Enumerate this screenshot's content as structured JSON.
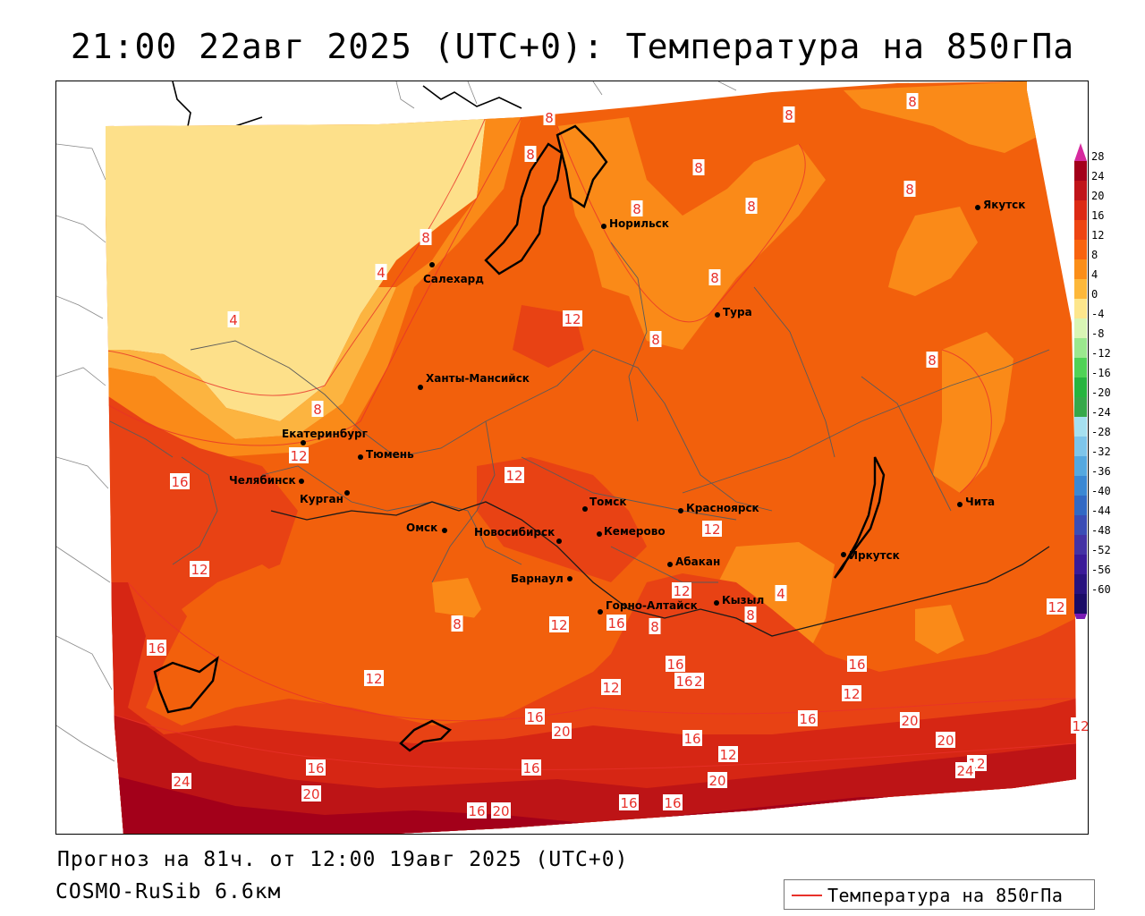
{
  "title": "21:00 22авг 2025 (UTC+0): Температура на 850гПа",
  "forecast_info": "Прогноз на 81ч. от 12:00 19авг 2025 (UTC+0)",
  "model_info": "COSMO-RuSib 6.6км",
  "legend": {
    "label": "Температура на 850гПа",
    "line_color": "#e8312a"
  },
  "colorbar": {
    "ticks": [
      "28",
      "24",
      "20",
      "16",
      "12",
      "8",
      "4",
      "0",
      "-4",
      "-8",
      "-12",
      "-16",
      "-20",
      "-24",
      "-28",
      "-32",
      "-36",
      "-40",
      "-44",
      "-48",
      "-52",
      "-56",
      "-60"
    ],
    "colors": [
      "#a3001a",
      "#c0141a",
      "#dc2a14",
      "#ee4512",
      "#f8630e",
      "#fb8e18",
      "#fdb83a",
      "#fde68c",
      "#d9f5b5",
      "#9be88e",
      "#50d256",
      "#27b43f",
      "#36a84a",
      "#a6e0f0",
      "#7ec5ea",
      "#55a8df",
      "#3b88d3",
      "#3269c4",
      "#3b4db5",
      "#4432a4",
      "#3a1a98",
      "#28127e",
      "#1a0b66"
    ],
    "top_arrow_color": "#d62a9e",
    "bottom_arrow_color": "#7a1ab4"
  },
  "colors": {
    "t_28": "#a3001a",
    "t_24": "#bd1416",
    "t_20": "#d62614",
    "t_16": "#e84214",
    "t_12": "#f2600c",
    "t_8": "#fa8a18",
    "t_4": "#fcb440",
    "t_0": "#fde08a"
  },
  "cities": [
    {
      "name": "Норильск"
    },
    {
      "name": "Якутск"
    },
    {
      "name": "Салехард"
    },
    {
      "name": "Тура"
    },
    {
      "name": "Ханты-Мансийск"
    },
    {
      "name": "Екатеринбург"
    },
    {
      "name": "Тюмень"
    },
    {
      "name": "Челябинск"
    },
    {
      "name": "Курган"
    },
    {
      "name": "Омск"
    },
    {
      "name": "Новосибирск"
    },
    {
      "name": "Томск"
    },
    {
      "name": "Кемерово"
    },
    {
      "name": "Красноярск"
    },
    {
      "name": "Барнаул"
    },
    {
      "name": "Абакан"
    },
    {
      "name": "Горно-Алтайск"
    },
    {
      "name": "Кызыл"
    },
    {
      "name": "Иркутск"
    },
    {
      "name": "Чита"
    }
  ],
  "isotherm_labels": [
    "8",
    "8",
    "8",
    "8",
    "8",
    "8",
    "8",
    "8",
    "4",
    "8",
    "12",
    "4",
    "8",
    "8",
    "8",
    "16",
    "12",
    "8",
    "12",
    "12",
    "12",
    "12",
    "8",
    "12",
    "16",
    "8",
    "4",
    "16",
    "12",
    "12",
    "16",
    "16",
    "12",
    "12",
    "12",
    "12",
    "12",
    "16",
    "8",
    "16",
    "20",
    "24",
    "20",
    "16",
    "12",
    "16",
    "16",
    "20",
    "16",
    "20",
    "20",
    "16",
    "16",
    "20",
    "24",
    "16"
  ]
}
